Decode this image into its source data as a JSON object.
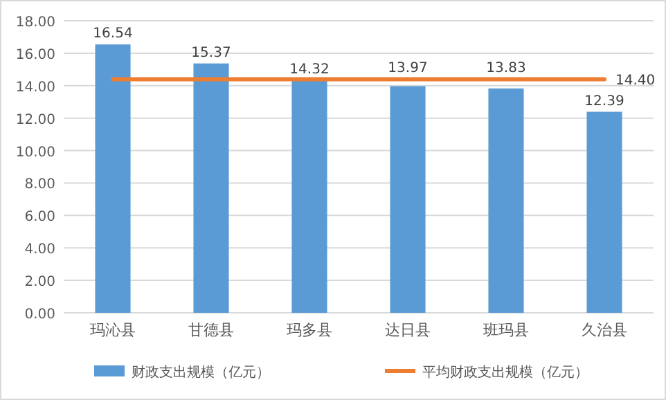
{
  "chart_data": {
    "type": "bar",
    "categories": [
      "玛沁县",
      "甘德县",
      "玛多县",
      "达日县",
      "班玛县",
      "久治县"
    ],
    "series": [
      {
        "name": "财政支出规模（亿元）",
        "color": "#5b9bd5",
        "values": [
          16.54,
          15.37,
          14.32,
          13.97,
          13.83,
          12.39
        ],
        "value_labels": [
          "16.54",
          "15.37",
          "14.32",
          "13.97",
          "13.83",
          "12.39"
        ]
      },
      {
        "name": "平均财政支出规模（亿元）",
        "type": "line",
        "color": "#ed7d31",
        "values": [
          14.4,
          14.4,
          14.4,
          14.4,
          14.4,
          14.4
        ],
        "value_labels": [
          null,
          null,
          null,
          null,
          null,
          "14.40"
        ]
      }
    ],
    "ylim": [
      0,
      18
    ],
    "yticks": [
      {
        "value": 0,
        "label": "0.00"
      },
      {
        "value": 2,
        "label": "2.00"
      },
      {
        "value": 4,
        "label": "4.00"
      },
      {
        "value": 6,
        "label": "6.00"
      },
      {
        "value": 8,
        "label": "8.00"
      },
      {
        "value": 10,
        "label": "10.00"
      },
      {
        "value": 12,
        "label": "12.00"
      },
      {
        "value": 14,
        "label": "14.00"
      },
      {
        "value": 16,
        "label": "16.00"
      },
      {
        "value": 18,
        "label": "18.00"
      }
    ],
    "grid": "y",
    "legend": "bottom"
  }
}
